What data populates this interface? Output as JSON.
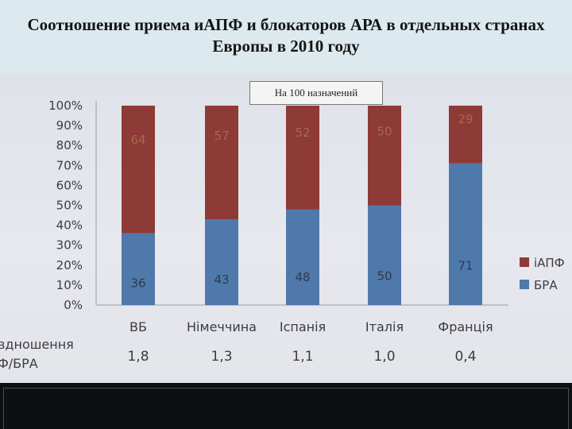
{
  "title": "Соотношение приема иАПФ и блокаторов АРА в отдельных странах Европы в 2010 году",
  "subtitle": "На 100 назначений",
  "chart_data": {
    "type": "bar",
    "stacked": true,
    "categories": [
      "ВБ",
      "Німеччина",
      "Іспанія",
      "Італія",
      "Франція"
    ],
    "series": [
      {
        "name": "БРА",
        "color": "#4f79ab",
        "values": [
          36,
          43,
          48,
          50,
          71
        ]
      },
      {
        "name": "іАПФ",
        "color": "#8e3a37",
        "values": [
          64,
          57,
          52,
          50,
          29
        ]
      }
    ],
    "ylim": [
      0,
      100
    ],
    "yticks": [
      "0%",
      "10%",
      "20%",
      "30%",
      "40%",
      "50%",
      "60%",
      "70%",
      "80%",
      "90%",
      "100%"
    ],
    "legend": "right",
    "ratio_row": {
      "label_lines": [
        "вдношення",
        "Ф/БРА"
      ],
      "values": [
        "1,8",
        "1,3",
        "1,1",
        "1,0",
        "0,4"
      ]
    }
  }
}
